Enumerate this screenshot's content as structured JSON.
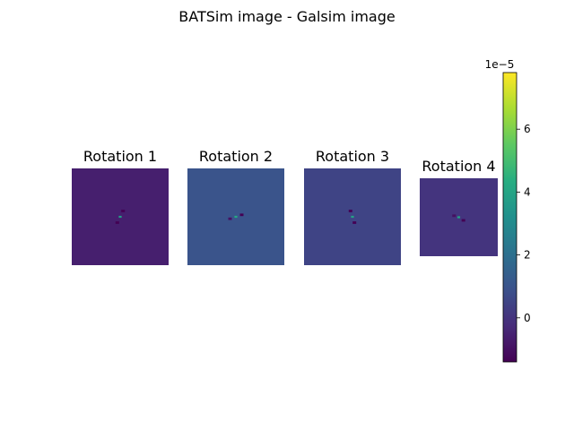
{
  "chart_data": {
    "type": "heatmap",
    "title": "BATSim image - Galsim image",
    "panels": [
      {
        "title": "Rotation 1",
        "background_value": -6e-06,
        "features": [
          {
            "dx": 0.0,
            "dy": 0.0,
            "value": 3.8e-05
          },
          {
            "dx": 0.03,
            "dy": -0.06,
            "value": -1.4e-05
          },
          {
            "dx": -0.03,
            "dy": 0.06,
            "value": -1.4e-05
          }
        ]
      },
      {
        "title": "Rotation 2",
        "background_value": 1e-05,
        "features": [
          {
            "dx": 0.0,
            "dy": 0.0,
            "value": 4.2e-05
          },
          {
            "dx": 0.06,
            "dy": -0.02,
            "value": -1.4e-05
          },
          {
            "dx": -0.06,
            "dy": 0.02,
            "value": -1e-05
          }
        ]
      },
      {
        "title": "Rotation 3",
        "background_value": 5e-06,
        "features": [
          {
            "dx": 0.0,
            "dy": 0.0,
            "value": 4e-05
          },
          {
            "dx": -0.02,
            "dy": -0.06,
            "value": -1.4e-05
          },
          {
            "dx": 0.02,
            "dy": 0.06,
            "value": -1.4e-05
          }
        ]
      },
      {
        "title": "Rotation 4",
        "background_value": 0.0,
        "features": [
          {
            "dx": 0.0,
            "dy": 0.0,
            "value": 4e-05
          },
          {
            "dx": -0.06,
            "dy": -0.02,
            "value": -1e-05
          },
          {
            "dx": 0.06,
            "dy": 0.04,
            "value": -1.4e-05
          }
        ]
      }
    ],
    "colorbar": {
      "colormap": "viridis",
      "range": [
        -1.4e-05,
        7.8e-05
      ],
      "ticks": [
        0,
        2e-05,
        4e-05,
        6e-05
      ],
      "tick_labels": [
        "0",
        "2",
        "4",
        "6"
      ],
      "offset_label": "1e−5"
    }
  }
}
